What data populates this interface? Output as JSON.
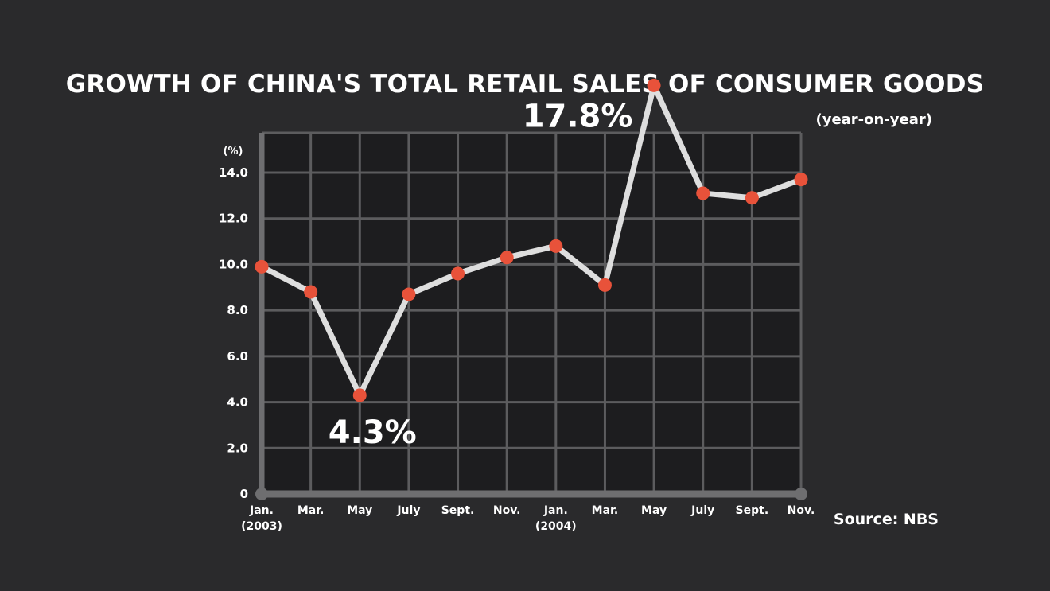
{
  "title": "GROWTH OF CHINA'S TOTAL RETAIL SALES OF CONSUMER GOODS",
  "subtitle": "(year-on-year)",
  "source": "Source: NBS",
  "chart_data": {
    "type": "line",
    "ylabel": "(%)",
    "ylim": [
      0,
      14.0
    ],
    "yticks": [
      "0",
      "2.0",
      "4.0",
      "6.0",
      "8.0",
      "10.0",
      "12.0",
      "14.0"
    ],
    "x": [
      {
        "label": "Jan.",
        "sublabel": "(2003)"
      },
      {
        "label": "Mar.",
        "sublabel": ""
      },
      {
        "label": "May",
        "sublabel": ""
      },
      {
        "label": "July",
        "sublabel": ""
      },
      {
        "label": "Sept.",
        "sublabel": ""
      },
      {
        "label": "Nov.",
        "sublabel": ""
      },
      {
        "label": "Jan.",
        "sublabel": "(2004)"
      },
      {
        "label": "Mar.",
        "sublabel": ""
      },
      {
        "label": "May",
        "sublabel": ""
      },
      {
        "label": "July",
        "sublabel": ""
      },
      {
        "label": "Sept.",
        "sublabel": ""
      },
      {
        "label": "Nov.",
        "sublabel": ""
      }
    ],
    "series": [
      {
        "values": [
          9.9,
          8.8,
          4.3,
          8.7,
          9.6,
          10.3,
          10.8,
          9.1,
          17.8,
          13.1,
          12.9,
          13.7
        ]
      }
    ],
    "annotations": [
      {
        "index": 2,
        "text": "4.3%"
      },
      {
        "index": 8,
        "text": "17.8%"
      }
    ],
    "grid": true,
    "colors": {
      "background": "#2a2a2c",
      "plot_background": "#1d1d1f",
      "grid": "#5c5c5e",
      "axis": "#6e6e70",
      "line": "#dedede",
      "marker": "#e8523a"
    }
  }
}
